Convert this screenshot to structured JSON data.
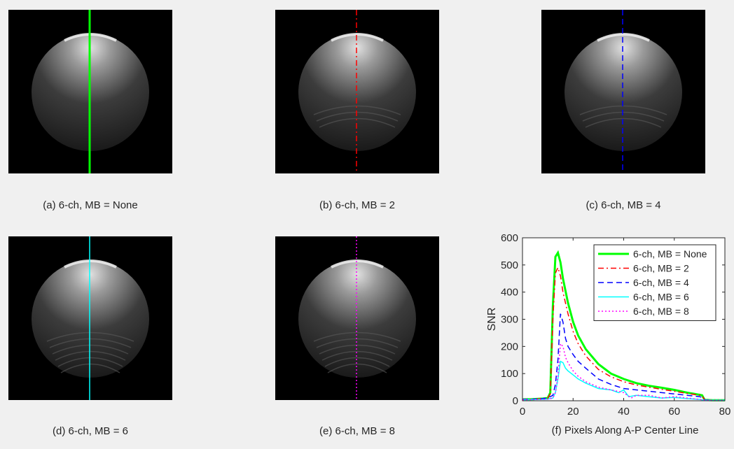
{
  "panels": [
    {
      "caption": "(a) 6-ch, MB = None",
      "line_color": "#00ff00",
      "line_style": "solid",
      "ripple": 0
    },
    {
      "caption": "(b) 6-ch, MB = 2",
      "line_color": "#ff0000",
      "line_style": "dashdot",
      "ripple": 1
    },
    {
      "caption": "(c) 6-ch, MB = 4",
      "line_color": "#0000ff",
      "line_style": "dashed",
      "ripple": 1
    },
    {
      "caption": "(d) 6-ch, MB = 6",
      "line_color": "#00ffff",
      "line_style": "solid",
      "ripple": 2
    },
    {
      "caption": "(e) 6-ch, MB = 8",
      "line_color": "#ff00ff",
      "line_style": "dotted",
      "ripple": 2
    }
  ],
  "chart_data": {
    "type": "line",
    "caption": "(f) Pixels Along A-P Center Line",
    "xlabel": "",
    "ylabel": "SNR",
    "xlim": [
      0,
      80
    ],
    "ylim": [
      0,
      600
    ],
    "xticks": [
      "0",
      "20",
      "40",
      "60",
      "80"
    ],
    "yticks": [
      "0",
      "100",
      "200",
      "300",
      "400",
      "500",
      "600"
    ],
    "legend_position": "top-right",
    "series": [
      {
        "name": "6-ch, MB = None",
        "color": "#00ff00",
        "style": "solid",
        "x": [
          0,
          4,
          8,
          10,
          11,
          12,
          13,
          14,
          15,
          16,
          18,
          20,
          22,
          25,
          30,
          35,
          40,
          45,
          50,
          55,
          60,
          65,
          70,
          71,
          72,
          75,
          80
        ],
        "y": [
          5,
          6,
          8,
          10,
          30,
          350,
          530,
          545,
          510,
          450,
          360,
          290,
          240,
          190,
          135,
          100,
          80,
          65,
          55,
          48,
          40,
          30,
          22,
          20,
          3,
          2,
          2
        ]
      },
      {
        "name": "6-ch, MB = 2",
        "color": "#ff0000",
        "style": "dashdot",
        "x": [
          0,
          4,
          8,
          10,
          11,
          12,
          13,
          14,
          15,
          16,
          18,
          20,
          22,
          25,
          30,
          35,
          40,
          45,
          50,
          55,
          60,
          65,
          70,
          71,
          72,
          75,
          80
        ],
        "y": [
          5,
          6,
          8,
          10,
          25,
          300,
          470,
          490,
          460,
          400,
          320,
          255,
          210,
          165,
          115,
          88,
          70,
          58,
          50,
          42,
          35,
          27,
          20,
          18,
          3,
          2,
          2
        ]
      },
      {
        "name": "6-ch, MB = 4",
        "color": "#0000ff",
        "style": "dashed",
        "x": [
          0,
          4,
          8,
          10,
          12,
          13,
          14,
          15,
          16,
          17,
          18,
          20,
          22,
          25,
          30,
          35,
          40,
          45,
          50,
          55,
          60,
          65,
          70,
          71,
          72,
          75,
          80
        ],
        "y": [
          5,
          6,
          8,
          10,
          20,
          60,
          150,
          320,
          290,
          230,
          200,
          170,
          145,
          120,
          80,
          60,
          45,
          40,
          35,
          30,
          25,
          20,
          15,
          12,
          3,
          2,
          2
        ]
      },
      {
        "name": "6-ch, MB = 6",
        "color": "#00ffff",
        "style": "solid",
        "x": [
          0,
          4,
          8,
          10,
          12,
          13,
          14,
          15,
          16,
          17,
          18,
          20,
          22,
          25,
          30,
          35,
          38,
          40,
          42,
          45,
          50,
          55,
          60,
          65,
          70,
          72,
          75,
          80
        ],
        "y": [
          3,
          4,
          5,
          6,
          10,
          30,
          80,
          145,
          140,
          120,
          110,
          95,
          80,
          65,
          45,
          40,
          30,
          40,
          15,
          20,
          15,
          10,
          12,
          8,
          5,
          2,
          2,
          2
        ]
      },
      {
        "name": "6-ch, MB = 8",
        "color": "#ff00ff",
        "style": "dotted",
        "x": [
          0,
          4,
          8,
          10,
          12,
          13,
          14,
          15,
          16,
          17,
          18,
          20,
          22,
          25,
          30,
          35,
          40,
          43,
          45,
          50,
          55,
          60,
          65,
          70,
          72,
          75,
          80
        ],
        "y": [
          3,
          4,
          5,
          6,
          10,
          30,
          90,
          210,
          200,
          160,
          140,
          110,
          90,
          70,
          50,
          40,
          30,
          10,
          20,
          20,
          10,
          15,
          10,
          5,
          2,
          2,
          2
        ]
      }
    ]
  }
}
